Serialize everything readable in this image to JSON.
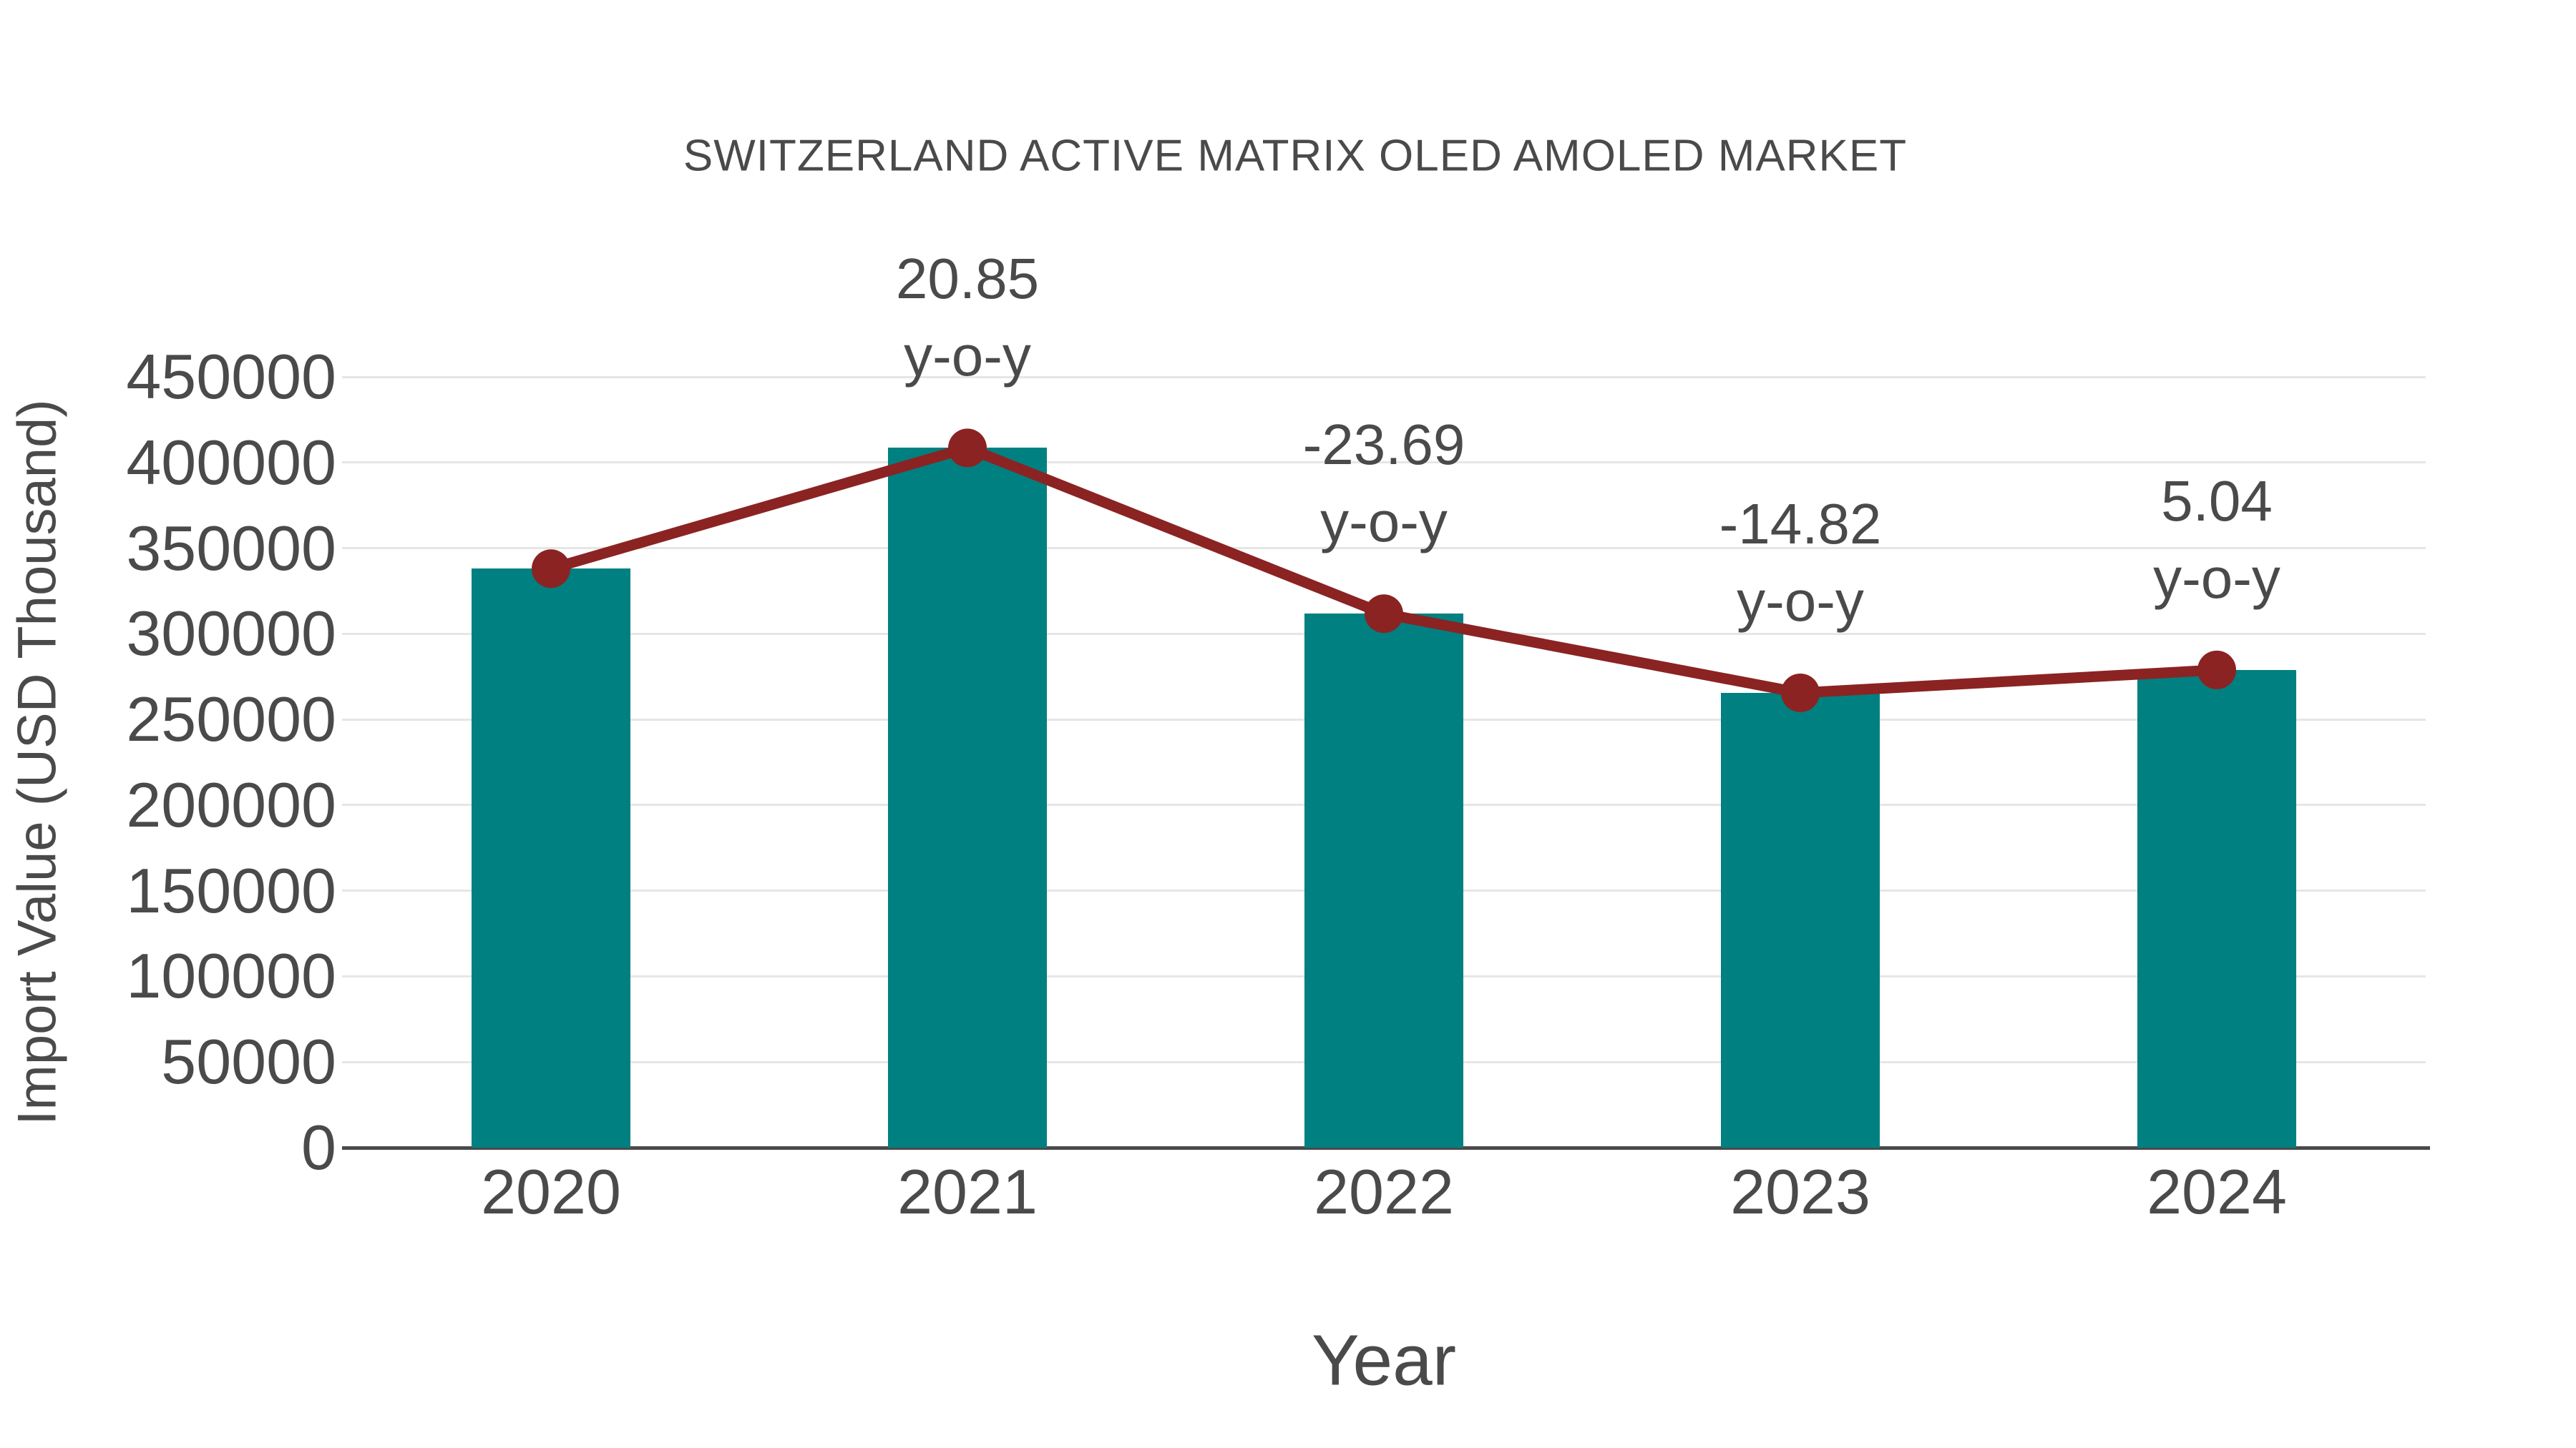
{
  "title": "SWITZERLAND ACTIVE MATRIX OLED AMOLED MARKET",
  "chart_data": {
    "type": "bar",
    "categories": [
      "2020",
      "2021",
      "2022",
      "2023",
      "2024"
    ],
    "series": [
      {
        "name": "Import Value",
        "type": "bar",
        "values": [
          338000,
          408500,
          311700,
          265500,
          278900
        ]
      },
      {
        "name": "y-o-y growth (%)",
        "type": "line",
        "values": [
          null,
          20.85,
          -23.69,
          -14.82,
          5.04
        ]
      }
    ],
    "annotations": [
      {
        "category": "2021",
        "line1": "20.85",
        "line2": "y-o-y"
      },
      {
        "category": "2022",
        "line1": "-23.69",
        "line2": "y-o-y"
      },
      {
        "category": "2023",
        "line1": "-14.82",
        "line2": "y-o-y"
      },
      {
        "category": "2024",
        "line1": "5.04",
        "line2": "y-o-y"
      }
    ],
    "xlabel": "Year",
    "ylabel": "Import Value (USD Thousand)",
    "ylim": [
      0,
      450000
    ],
    "ytick_step": 50000,
    "yticks": [
      "0",
      "50000",
      "100000",
      "150000",
      "200000",
      "250000",
      "300000",
      "350000",
      "400000",
      "450000"
    ],
    "grid": true,
    "legend_position": "none"
  },
  "colors": {
    "bar": "#008080",
    "line": "#8B2323",
    "marker": "#8B2323",
    "text": "#4a4a4a",
    "grid": "#e6e6e6",
    "axis": "#4a4a4a",
    "background": "#ffffff"
  }
}
